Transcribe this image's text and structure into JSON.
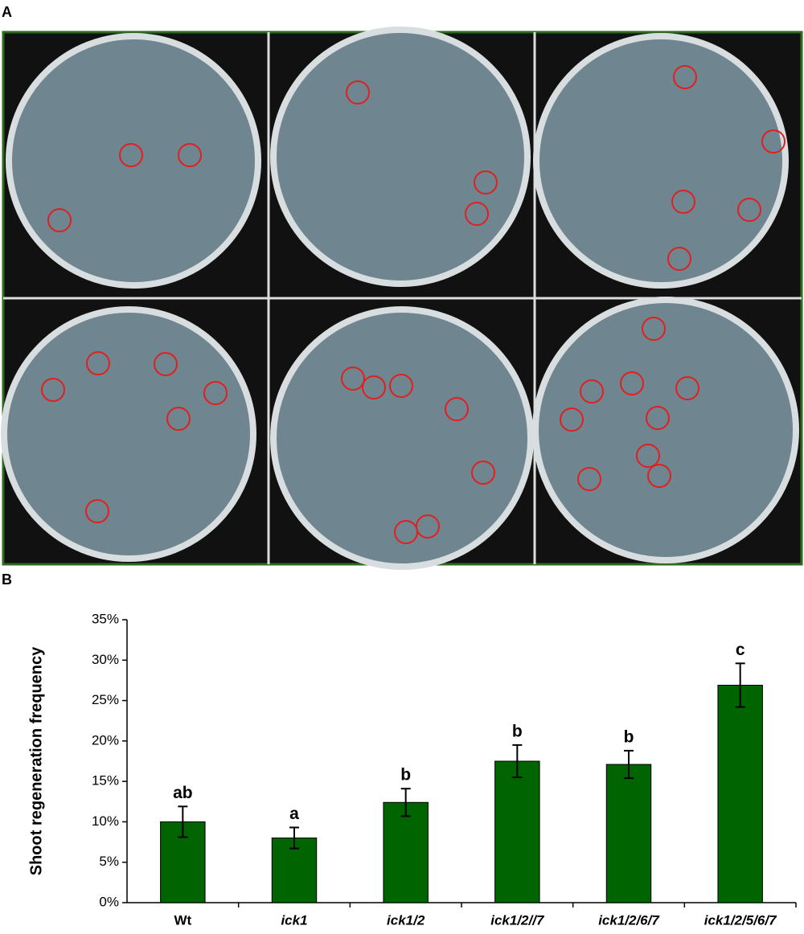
{
  "panels": {
    "a": "A",
    "b": "B"
  },
  "chart_data": {
    "type": "bar",
    "ylabel": "Shoot regeneration frequency",
    "categories": [
      "Wt",
      "ick1",
      "ick1/2",
      "ick1/2//7",
      "ick1/2/6/7",
      "ick1/2/5/6/7"
    ],
    "series": [
      {
        "name": "Shoot regeneration frequency",
        "color": "#006400",
        "values": [
          10.0,
          8.0,
          12.4,
          17.5,
          17.1,
          26.9
        ],
        "errors": [
          1.9,
          1.3,
          1.7,
          2.0,
          1.7,
          2.7
        ],
        "letters": [
          "ab",
          "a",
          "b",
          "b",
          "b",
          "c"
        ]
      }
    ],
    "ylim": [
      0,
      35
    ],
    "yticks": [
      {
        "value": 0,
        "label": "0%"
      },
      {
        "value": 5,
        "label": "5%"
      },
      {
        "value": 10,
        "label": "10%"
      },
      {
        "value": 15,
        "label": "15%"
      },
      {
        "value": 20,
        "label": "20%"
      },
      {
        "value": 25,
        "label": "25%"
      },
      {
        "value": 30,
        "label": "30%"
      },
      {
        "value": 35,
        "label": "35%"
      }
    ],
    "grid": false
  }
}
